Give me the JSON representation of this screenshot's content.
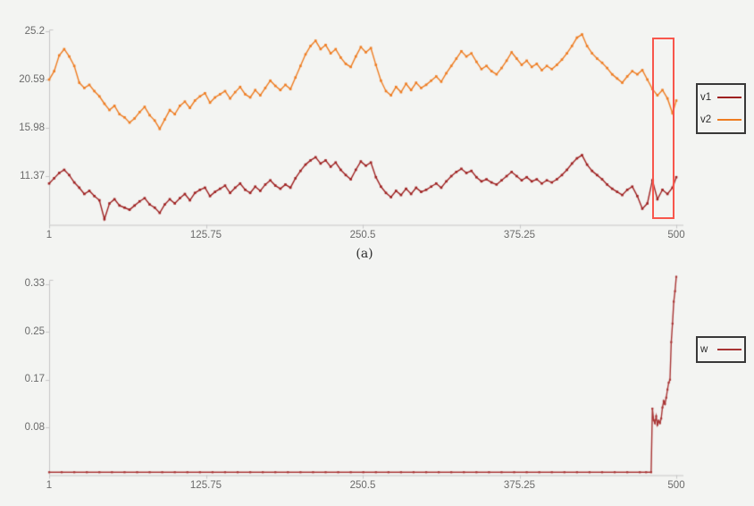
{
  "colors": {
    "background": "#f3f4f2",
    "axis": "#c6c6c6",
    "tick_text": "#6a6a6a",
    "v1": "#9e2020",
    "v2": "#ee7c21",
    "w": "#a83434",
    "highlight": "#f8564c"
  },
  "chart_data": [
    {
      "id": "a",
      "type": "line",
      "title": "",
      "caption": "(a)",
      "xlabel": "",
      "ylabel": "",
      "grid": false,
      "xlim": [
        1,
        500
      ],
      "ylim": [
        6.76,
        25.2
      ],
      "x_ticks": [
        {
          "label": "1",
          "value": 1
        },
        {
          "label": "125.75",
          "value": 125.75
        },
        {
          "label": "250.5",
          "value": 250.5
        },
        {
          "label": "375.25",
          "value": 375.25
        },
        {
          "label": "500",
          "value": 500
        }
      ],
      "y_ticks": [
        {
          "label": "25.2",
          "value": 25.2
        },
        {
          "label": "20.59",
          "value": 20.59
        },
        {
          "label": "15.98",
          "value": 15.98
        },
        {
          "label": "11.37",
          "value": 11.37
        }
      ],
      "legend": {
        "position": "right",
        "items": [
          {
            "label": "v1",
            "color": "#9e2020"
          },
          {
            "label": "v2",
            "color": "#ee7c21"
          }
        ]
      },
      "annotation_box": {
        "note": "red highlight rectangle over final ~20 samples",
        "x0": 480.5,
        "x1": 498.3,
        "v0": 7.3,
        "v1": 24.6,
        "color": "#f8564c"
      },
      "series": [
        {
          "name": "v1",
          "color": "#9e2020",
          "x": [
            1,
            5,
            9,
            13,
            17,
            21,
            25,
            29,
            33,
            37,
            41,
            45,
            49,
            53,
            57,
            61,
            65,
            69,
            73,
            77,
            81,
            85,
            89,
            93,
            97,
            101,
            105,
            109,
            113,
            117,
            121,
            125,
            129,
            133,
            137,
            141,
            145,
            149,
            153,
            157,
            161,
            165,
            169,
            173,
            177,
            181,
            185,
            189,
            193,
            197,
            201,
            205,
            209,
            213,
            217,
            221,
            225,
            229,
            233,
            237,
            241,
            245,
            249,
            253,
            257,
            261,
            265,
            269,
            273,
            277,
            281,
            285,
            289,
            293,
            297,
            301,
            305,
            309,
            313,
            317,
            321,
            325,
            329,
            333,
            337,
            341,
            345,
            349,
            353,
            357,
            361,
            365,
            369,
            373,
            377,
            381,
            385,
            389,
            393,
            397,
            401,
            405,
            409,
            413,
            417,
            421,
            425,
            429,
            433,
            437,
            441,
            445,
            449,
            453,
            457,
            461,
            465,
            469,
            473,
            477,
            481,
            485,
            489,
            493,
            497,
            500
          ],
          "y": [
            10.7,
            11.2,
            11.7,
            12.0,
            11.5,
            10.8,
            10.3,
            9.7,
            10.0,
            9.5,
            9.1,
            7.3,
            8.8,
            9.2,
            8.6,
            8.4,
            8.2,
            8.6,
            9.0,
            9.3,
            8.7,
            8.4,
            7.9,
            8.7,
            9.2,
            8.8,
            9.3,
            9.7,
            9.1,
            9.8,
            10.1,
            10.3,
            9.5,
            9.9,
            10.2,
            10.5,
            9.8,
            10.3,
            10.7,
            10.1,
            9.8,
            10.4,
            10.0,
            10.6,
            11.0,
            10.5,
            10.2,
            10.6,
            10.3,
            11.2,
            11.9,
            12.5,
            12.9,
            13.2,
            12.6,
            12.9,
            12.3,
            12.7,
            12.0,
            11.5,
            11.1,
            12.0,
            12.8,
            12.4,
            12.7,
            11.3,
            10.4,
            9.8,
            9.4,
            10.0,
            9.6,
            10.2,
            9.7,
            10.3,
            9.9,
            10.1,
            10.4,
            10.7,
            10.3,
            10.9,
            11.4,
            11.8,
            12.1,
            11.7,
            11.9,
            11.3,
            10.9,
            11.1,
            10.8,
            10.6,
            11.0,
            11.4,
            11.8,
            11.4,
            11.0,
            11.3,
            10.9,
            11.1,
            10.7,
            11.0,
            10.8,
            11.1,
            11.5,
            12.0,
            12.6,
            13.1,
            13.4,
            12.5,
            11.9,
            11.5,
            11.1,
            10.6,
            10.2,
            9.9,
            9.6,
            10.1,
            10.4,
            9.5,
            8.3,
            8.8,
            11.0,
            9.2,
            10.1,
            9.7,
            10.3,
            11.3
          ]
        },
        {
          "name": "v2",
          "color": "#ee7c21",
          "x": [
            1,
            5,
            9,
            13,
            17,
            21,
            25,
            29,
            33,
            37,
            41,
            45,
            49,
            53,
            57,
            61,
            65,
            69,
            73,
            77,
            81,
            85,
            89,
            93,
            97,
            101,
            105,
            109,
            113,
            117,
            121,
            125,
            129,
            133,
            137,
            141,
            145,
            149,
            153,
            157,
            161,
            165,
            169,
            173,
            177,
            181,
            185,
            189,
            193,
            197,
            201,
            205,
            209,
            213,
            217,
            221,
            225,
            229,
            233,
            237,
            241,
            245,
            249,
            253,
            257,
            261,
            265,
            269,
            273,
            277,
            281,
            285,
            289,
            293,
            297,
            301,
            305,
            309,
            313,
            317,
            321,
            325,
            329,
            333,
            337,
            341,
            345,
            349,
            353,
            357,
            361,
            365,
            369,
            373,
            377,
            381,
            385,
            389,
            393,
            397,
            401,
            405,
            409,
            413,
            417,
            421,
            425,
            429,
            433,
            437,
            441,
            445,
            449,
            453,
            457,
            461,
            465,
            469,
            473,
            477,
            481,
            485,
            489,
            493,
            497,
            500
          ],
          "y": [
            20.6,
            21.4,
            22.9,
            23.5,
            22.8,
            21.9,
            20.3,
            19.8,
            20.1,
            19.5,
            19.0,
            18.3,
            17.7,
            18.1,
            17.3,
            17.0,
            16.5,
            16.9,
            17.5,
            18.0,
            17.2,
            16.7,
            15.9,
            16.8,
            17.7,
            17.3,
            18.1,
            18.5,
            17.9,
            18.6,
            19.0,
            19.3,
            18.4,
            18.9,
            19.2,
            19.5,
            18.8,
            19.4,
            19.9,
            19.2,
            18.9,
            19.6,
            19.1,
            19.8,
            20.5,
            20.0,
            19.6,
            20.1,
            19.7,
            20.8,
            21.9,
            23.0,
            23.8,
            24.3,
            23.5,
            23.9,
            23.1,
            23.5,
            22.7,
            22.1,
            21.8,
            22.8,
            23.7,
            23.2,
            23.6,
            22.0,
            20.5,
            19.5,
            19.1,
            19.9,
            19.4,
            20.2,
            19.6,
            20.3,
            19.8,
            20.1,
            20.5,
            20.9,
            20.4,
            21.2,
            21.9,
            22.6,
            23.3,
            22.8,
            23.1,
            22.3,
            21.6,
            21.9,
            21.4,
            21.1,
            21.7,
            22.4,
            23.2,
            22.6,
            22.0,
            22.4,
            21.8,
            22.1,
            21.5,
            21.9,
            21.6,
            22.0,
            22.5,
            23.1,
            23.8,
            24.6,
            24.9,
            23.8,
            23.1,
            22.6,
            22.2,
            21.7,
            21.1,
            20.7,
            20.3,
            20.9,
            21.4,
            21.1,
            21.5,
            20.6,
            19.7,
            19.1,
            19.6,
            18.8,
            17.4,
            18.6
          ]
        }
      ]
    },
    {
      "id": "b",
      "type": "line",
      "title": "",
      "caption": "",
      "xlabel": "",
      "ylabel": "",
      "grid": false,
      "xlim": [
        1,
        500
      ],
      "ylim": [
        0,
        0.341
      ],
      "x_ticks": [
        {
          "label": "1",
          "value": 1
        },
        {
          "label": "125.75",
          "value": 125.75
        },
        {
          "label": "250.5",
          "value": 250.5
        },
        {
          "label": "375.25",
          "value": 375.25
        },
        {
          "label": "500",
          "value": 500
        }
      ],
      "y_ticks": [
        {
          "label": "0.33",
          "value": 0.33
        },
        {
          "label": "0.25",
          "value": 0.2475
        },
        {
          "label": "0.17",
          "value": 0.165
        },
        {
          "label": "0.08",
          "value": 0.0825
        }
      ],
      "legend": {
        "position": "right",
        "items": [
          {
            "label": "w",
            "color": "#a83434"
          }
        ]
      },
      "series": [
        {
          "name": "w",
          "color": "#a83434",
          "x": [
            1,
            11,
            21,
            31,
            41,
            51,
            61,
            71,
            81,
            91,
            101,
            111,
            121,
            131,
            141,
            151,
            161,
            171,
            181,
            191,
            201,
            211,
            221,
            231,
            241,
            251,
            261,
            271,
            281,
            291,
            301,
            311,
            321,
            331,
            341,
            351,
            361,
            371,
            381,
            391,
            401,
            411,
            421,
            431,
            441,
            451,
            461,
            471,
            476,
            480,
            481,
            482,
            483,
            484,
            485,
            486,
            487,
            488,
            489,
            490,
            491,
            492,
            493,
            494,
            495,
            496,
            497,
            498,
            499,
            500
          ],
          "y": [
            0.005,
            0.005,
            0.005,
            0.005,
            0.005,
            0.005,
            0.005,
            0.005,
            0.005,
            0.005,
            0.005,
            0.005,
            0.005,
            0.005,
            0.005,
            0.005,
            0.005,
            0.005,
            0.005,
            0.005,
            0.005,
            0.005,
            0.005,
            0.005,
            0.005,
            0.005,
            0.005,
            0.005,
            0.005,
            0.005,
            0.005,
            0.005,
            0.005,
            0.005,
            0.005,
            0.005,
            0.005,
            0.005,
            0.005,
            0.005,
            0.005,
            0.005,
            0.005,
            0.005,
            0.005,
            0.005,
            0.005,
            0.005,
            0.005,
            0.005,
            0.115,
            0.095,
            0.09,
            0.102,
            0.087,
            0.094,
            0.09,
            0.098,
            0.117,
            0.128,
            0.123,
            0.134,
            0.148,
            0.16,
            0.165,
            0.23,
            0.262,
            0.3,
            0.318,
            0.343
          ]
        }
      ]
    }
  ]
}
